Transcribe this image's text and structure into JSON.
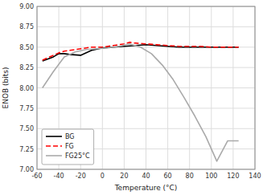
{
  "chart_data": {
    "type": "line",
    "xlabel": "Temperature (°C)",
    "ylabel": "ENOB (bits)",
    "xlim": [
      -60,
      140
    ],
    "ylim": [
      7,
      9
    ],
    "xticks": [
      -60,
      -40,
      -20,
      0,
      20,
      40,
      60,
      80,
      100,
      120,
      140
    ],
    "yticks": [
      {
        "value": 7,
        "label": "7.00"
      },
      {
        "value": 7.25,
        "label": "7.25"
      },
      {
        "value": 7.5,
        "label": "7.50"
      },
      {
        "value": 7.75,
        "label": "7.75"
      },
      {
        "value": 8,
        "label": "8.00"
      },
      {
        "value": 8.25,
        "label": "8.25"
      },
      {
        "value": 8.5,
        "label": "8.50"
      },
      {
        "value": 8.75,
        "label": "8.75"
      },
      {
        "value": 9,
        "label": "9.00"
      }
    ],
    "grid": true,
    "legend": "lower left",
    "series": [
      {
        "name": "BG",
        "color": "#000000",
        "line_style": "solid",
        "x": [
          -55,
          -45,
          -40,
          -35,
          -30,
          -20,
          -10,
          0,
          10,
          20,
          30,
          40,
          50,
          60,
          70,
          80,
          90,
          100,
          110,
          120,
          125
        ],
        "values": [
          8.33,
          8.38,
          8.42,
          8.42,
          8.41,
          8.4,
          8.46,
          8.49,
          8.5,
          8.51,
          8.52,
          8.53,
          8.52,
          8.51,
          8.5,
          8.5,
          8.5,
          8.5,
          8.5,
          8.5,
          8.5
        ]
      },
      {
        "name": "FG",
        "color": "#ff0000",
        "line_style": "dashed",
        "x": [
          -55,
          -45,
          -40,
          -35,
          -30,
          -20,
          -10,
          0,
          10,
          20,
          25,
          30,
          40,
          50,
          60,
          70,
          80,
          90,
          100,
          110,
          120,
          125
        ],
        "values": [
          8.34,
          8.4,
          8.43,
          8.45,
          8.46,
          8.48,
          8.5,
          8.5,
          8.52,
          8.54,
          8.56,
          8.55,
          8.54,
          8.53,
          8.52,
          8.51,
          8.51,
          8.51,
          8.5,
          8.5,
          8.5,
          8.5
        ]
      },
      {
        "name": "FG25°C",
        "color": "#aaaaaa",
        "line_style": "solid",
        "x": [
          -55,
          -45,
          -35,
          -25,
          -15,
          -5,
          5,
          15,
          25,
          35,
          45,
          55,
          65,
          75,
          85,
          95,
          105,
          115,
          125
        ],
        "values": [
          8.0,
          8.2,
          8.38,
          8.44,
          8.47,
          8.48,
          8.49,
          8.51,
          8.54,
          8.5,
          8.42,
          8.28,
          8.1,
          7.88,
          7.65,
          7.4,
          7.1,
          7.35,
          7.35
        ]
      }
    ]
  }
}
